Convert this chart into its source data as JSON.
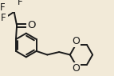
{
  "background_color": "#f2ead8",
  "line_color": "#1a1a1a",
  "line_width": 1.4,
  "font_size": 8.5,
  "figsize": [
    1.43,
    0.95
  ],
  "dpi": 100,
  "xlim": [
    -1.0,
    4.8
  ],
  "ylim": [
    -1.6,
    1.8
  ]
}
